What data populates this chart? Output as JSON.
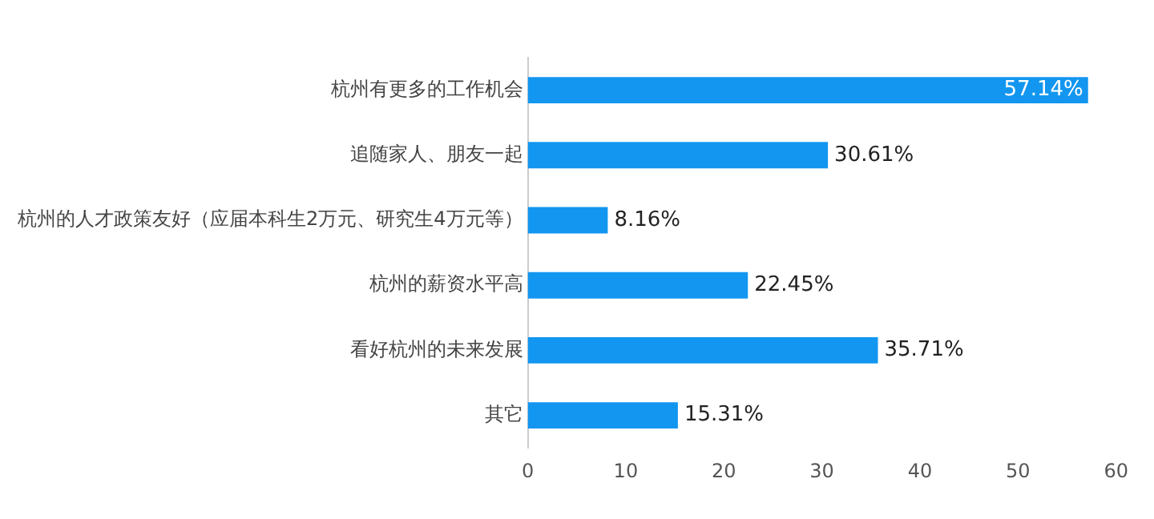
{
  "chart_data": {
    "type": "bar",
    "orientation": "horizontal",
    "categories": [
      "杭州有更多的工作机会",
      "追随家人、朋友一起",
      "杭州的人才政策友好（应届本科生2万元、研究生4万元等）",
      "杭州的薪资水平高",
      "看好杭州的未来发展",
      "其它"
    ],
    "values": [
      57.14,
      30.61,
      8.16,
      22.45,
      35.71,
      15.31
    ],
    "value_labels": [
      "57.14%",
      "30.61%",
      "8.16%",
      "22.45%",
      "35.71%",
      "15.31%"
    ],
    "color": "#1296f0",
    "xlim": [
      0,
      60
    ],
    "xticks": [
      0,
      10,
      20,
      30,
      40,
      50,
      60
    ],
    "grid": false,
    "legend": false
  }
}
